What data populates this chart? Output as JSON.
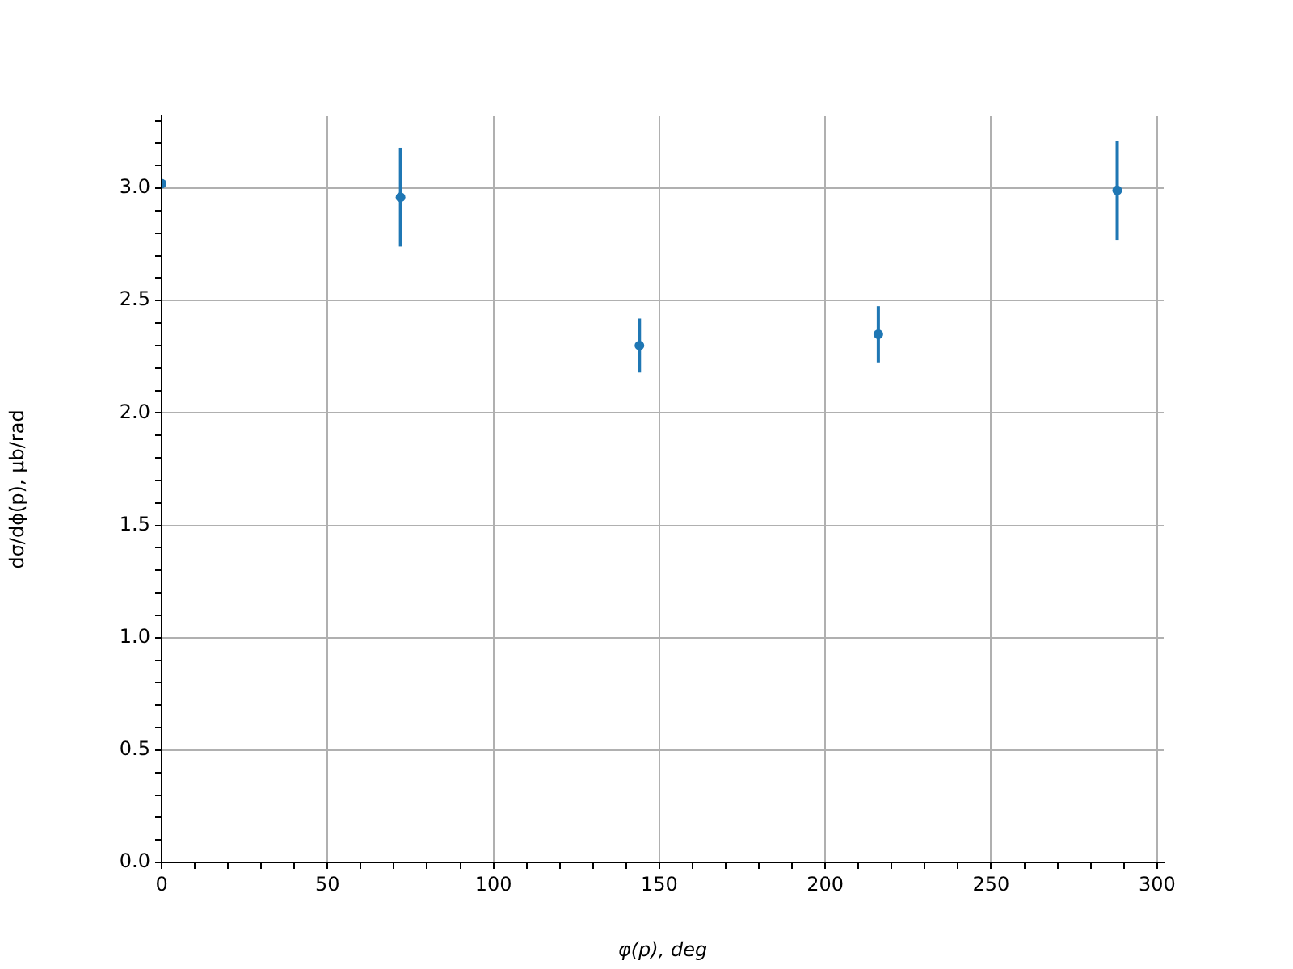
{
  "chart_data": {
    "type": "scatter",
    "xlabel": "φ(p), deg",
    "ylabel": "dσ/dϕ(p), μb/rad",
    "x": [
      0,
      72,
      144,
      216,
      288
    ],
    "series": [
      {
        "color": "#1f77b4",
        "values": [
          3.02,
          2.96,
          2.3,
          2.35,
          2.99
        ],
        "errors": [
          null,
          0.22,
          0.12,
          0.125,
          0.22
        ]
      }
    ],
    "xlim": [
      0,
      302
    ],
    "xticks": [
      0,
      {
        "value": 10,
        "label": null
      },
      {
        "value": 20,
        "label": null
      },
      {
        "value": 30,
        "label": null
      },
      {
        "value": 40,
        "label": null
      },
      50,
      {
        "value": 60,
        "label": null
      },
      {
        "value": 70,
        "label": null
      },
      {
        "value": 80,
        "label": null
      },
      {
        "value": 90,
        "label": null
      },
      100,
      {
        "value": 110,
        "label": null
      },
      {
        "value": 120,
        "label": null
      },
      {
        "value": 130,
        "label": null
      },
      {
        "value": 140,
        "label": null
      },
      150,
      {
        "value": 160,
        "label": null
      },
      {
        "value": 170,
        "label": null
      },
      {
        "value": 180,
        "label": null
      },
      {
        "value": 190,
        "label": null
      },
      200,
      {
        "value": 210,
        "label": null
      },
      {
        "value": 220,
        "label": null
      },
      {
        "value": 230,
        "label": null
      },
      {
        "value": 240,
        "label": null
      },
      250,
      {
        "value": 260,
        "label": null
      },
      {
        "value": 270,
        "label": null
      },
      {
        "value": 280,
        "label": null
      },
      {
        "value": 290,
        "label": null
      },
      300
    ],
    "ylim": [
      0,
      3.32
    ],
    "yticks": [
      {
        "value": 0,
        "label": "0.0"
      },
      {
        "value": 0.1,
        "label": null
      },
      {
        "value": 0.2,
        "label": null
      },
      {
        "value": 0.3,
        "label": null
      },
      {
        "value": 0.4,
        "label": null
      },
      0.5,
      {
        "value": 0.6,
        "label": null
      },
      {
        "value": 0.7,
        "label": null
      },
      {
        "value": 0.8,
        "label": null
      },
      {
        "value": 0.9,
        "label": null
      },
      {
        "value": 1,
        "label": "1.0"
      },
      {
        "value": 1.1,
        "label": null
      },
      {
        "value": 1.2,
        "label": null
      },
      {
        "value": 1.3,
        "label": null
      },
      {
        "value": 1.4,
        "label": null
      },
      1.5,
      {
        "value": 1.6,
        "label": null
      },
      {
        "value": 1.7,
        "label": null
      },
      {
        "value": 1.8,
        "label": null
      },
      {
        "value": 1.9,
        "label": null
      },
      {
        "value": 2,
        "label": "2.0"
      },
      {
        "value": 2.1,
        "label": null
      },
      {
        "value": 2.2,
        "label": null
      },
      {
        "value": 2.3,
        "label": null
      },
      {
        "value": 2.4,
        "label": null
      },
      2.5,
      {
        "value": 2.6,
        "label": null
      },
      {
        "value": 2.7,
        "label": null
      },
      {
        "value": 2.8,
        "label": null
      },
      {
        "value": 2.9,
        "label": null
      },
      {
        "value": 3,
        "label": "3.0"
      },
      {
        "value": 3.1,
        "label": null
      },
      {
        "value": 3.2,
        "label": null
      },
      {
        "value": 3.3,
        "label": null
      }
    ],
    "grid": true,
    "marker": "circle",
    "legend": false
  }
}
